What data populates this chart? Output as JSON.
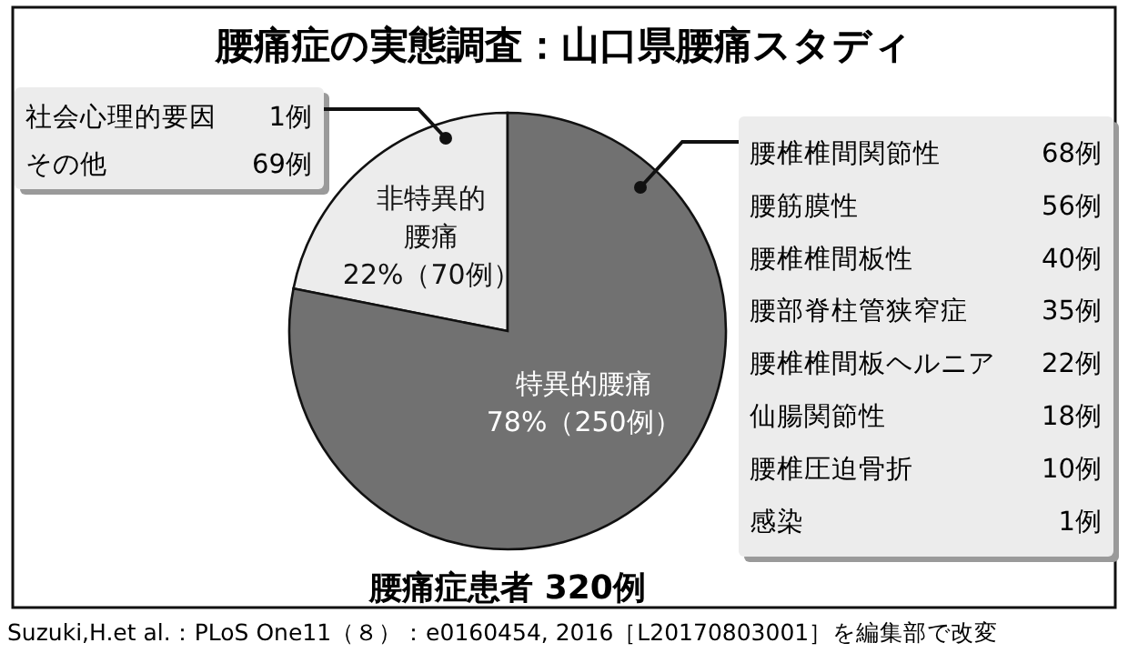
{
  "chart_data": [
    {
      "type": "pie",
      "title": "腰痛症の実態調査：山口県腰痛スタディ",
      "categories": [
        "非特異的腰痛",
        "特異的腰痛"
      ],
      "values": [
        70,
        250
      ],
      "colors": [
        "#ececec",
        "#717171"
      ],
      "value_labels": [
        "22%（70例）",
        "78%（250例）"
      ],
      "annotations": [
        "腰痛症患者 320例",
        "Suzuki,H.et al.：PLoS One11（８）：e0160454, 2016［L20170803001］を編集部で改変"
      ]
    },
    {
      "type": "other",
      "categories": [
        "社会心理的要因",
        "その他"
      ],
      "values": [
        1,
        69
      ],
      "value_labels": [
        "1例",
        "69例"
      ]
    },
    {
      "type": "other",
      "categories": [
        "腰椎椎間関節性",
        "腰筋膜性",
        "腰椎椎間板性",
        "腰部脊柱管狭窄症",
        "腰椎椎間板ヘルニア",
        "仙腸関節性",
        "腰椎圧迫骨折",
        "感染"
      ],
      "values": [
        68,
        56,
        40,
        35,
        22,
        18,
        10,
        1
      ],
      "value_labels": [
        "68例",
        "56例",
        "40例",
        "35例",
        "22例",
        "18例",
        "10例",
        "1例"
      ]
    }
  ]
}
